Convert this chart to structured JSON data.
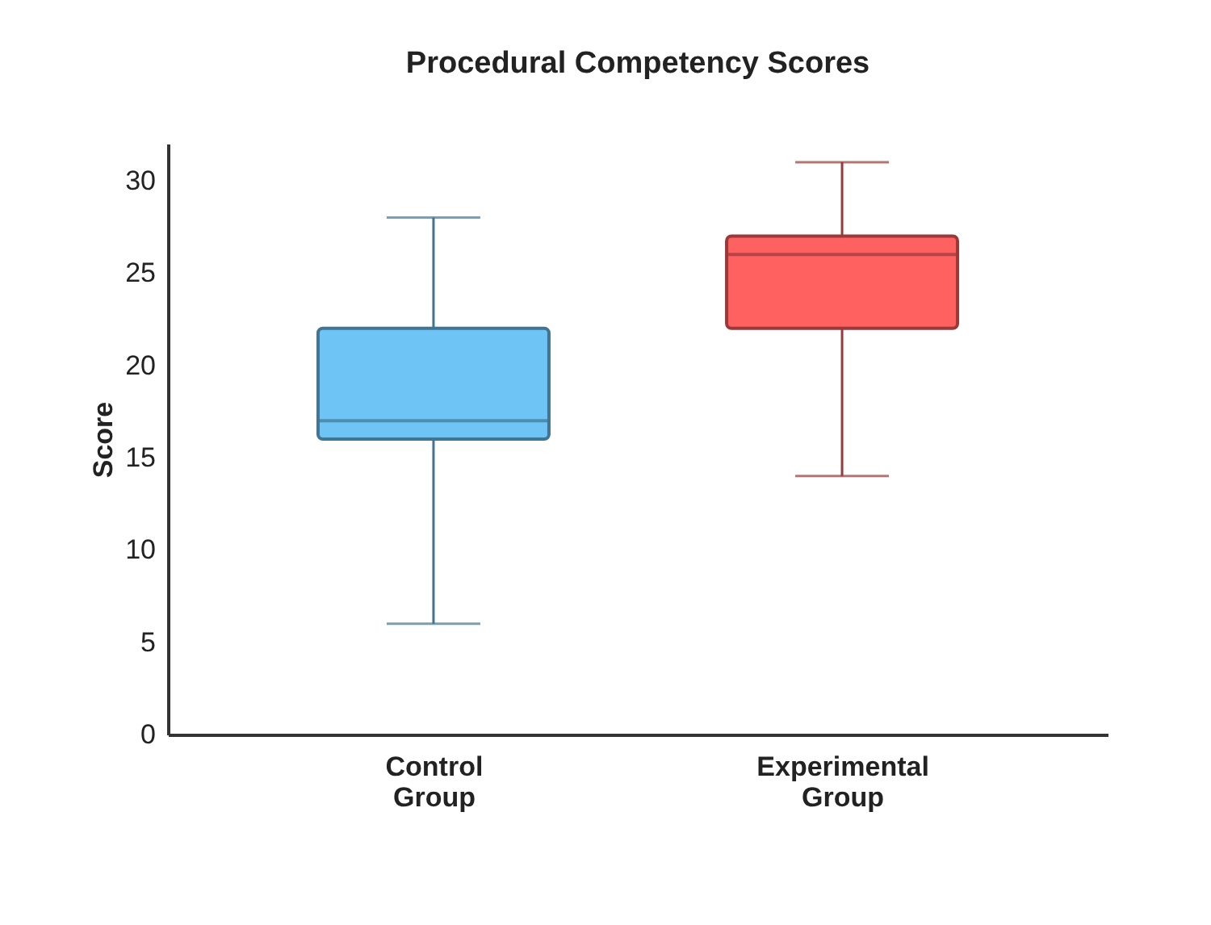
{
  "chart_data": {
    "type": "box",
    "title": "Procedural Competency Scores",
    "ylabel": "Score",
    "categories": [
      "Control Group",
      "Experimental Group"
    ],
    "boxes": [
      {
        "low": 6,
        "q1": 16,
        "median": 17,
        "q3": 22,
        "high": 28
      },
      {
        "low": 14,
        "q1": 22,
        "median": 26,
        "q3": 27,
        "high": 31
      }
    ],
    "colors": [
      "#6ec4f4",
      "#ff6060"
    ],
    "ylim": [
      0,
      32
    ],
    "yticks": [
      0,
      5,
      10,
      15,
      20,
      25,
      30
    ],
    "grid": false
  }
}
